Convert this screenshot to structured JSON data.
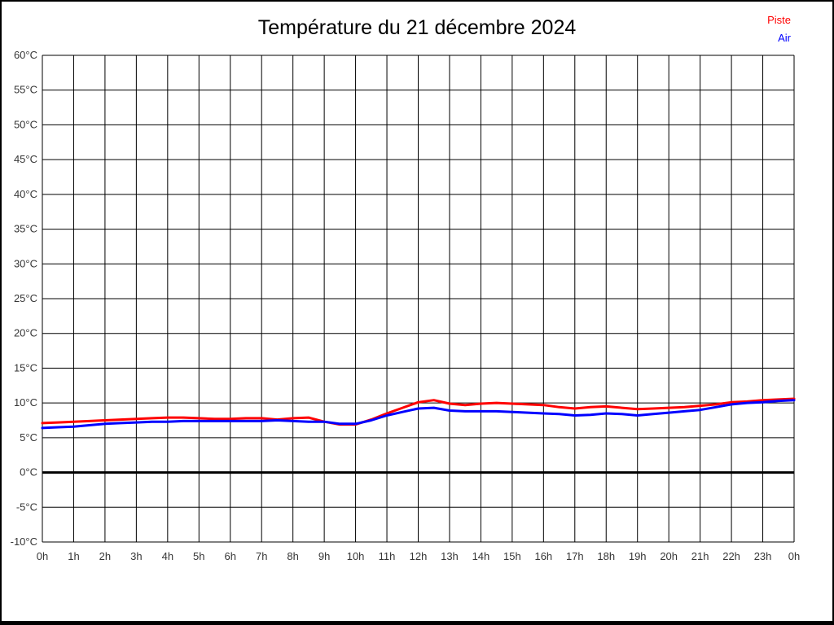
{
  "title": "Température du 21 décembre 2024",
  "legend": {
    "piste_label": "Piste",
    "air_label": "Air"
  },
  "colors": {
    "piste": "#ff0000",
    "air": "#0000ff",
    "grid": "#000000",
    "zero_line": "#000000",
    "tick_text": "#363636"
  },
  "chart_data": {
    "type": "line",
    "title": "Température du 21 décembre 2024",
    "xlabel": "",
    "ylabel": "",
    "x_unit": "h",
    "y_unit": "°C",
    "xlim_hours": [
      0,
      24
    ],
    "ylim": [
      -10,
      60
    ],
    "y_step": 5,
    "grid": "on",
    "zero_line_value": 0,
    "legend_position": "top-right-outside",
    "x_tick_labels": [
      "0h",
      "1h",
      "2h",
      "3h",
      "4h",
      "5h",
      "6h",
      "7h",
      "8h",
      "9h",
      "10h",
      "11h",
      "12h",
      "13h",
      "14h",
      "15h",
      "16h",
      "17h",
      "18h",
      "19h",
      "20h",
      "21h",
      "22h",
      "23h",
      "0h"
    ],
    "y_tick_labels": [
      "60°C",
      "55°C",
      "50°C",
      "45°C",
      "40°C",
      "35°C",
      "30°C",
      "25°C",
      "20°C",
      "15°C",
      "10°C",
      "5°C",
      "0°C",
      "-5°C",
      "-10°C"
    ],
    "x_step_hours": 0.5,
    "series": [
      {
        "name": "Piste",
        "color": "#ff0000",
        "values": [
          7.1,
          7.2,
          7.3,
          7.4,
          7.5,
          7.6,
          7.7,
          7.8,
          7.9,
          7.9,
          7.8,
          7.7,
          7.7,
          7.8,
          7.8,
          7.6,
          7.8,
          7.9,
          7.3,
          6.9,
          6.9,
          7.6,
          8.5,
          9.3,
          10.1,
          10.4,
          9.9,
          9.7,
          9.9,
          10.0,
          9.9,
          9.8,
          9.7,
          9.4,
          9.2,
          9.4,
          9.5,
          9.3,
          9.1,
          9.2,
          9.3,
          9.4,
          9.6,
          9.8,
          10.1,
          10.2,
          10.4,
          10.5,
          10.6
        ]
      },
      {
        "name": "Air",
        "color": "#0000ff",
        "values": [
          6.4,
          6.5,
          6.6,
          6.8,
          7.0,
          7.1,
          7.2,
          7.3,
          7.3,
          7.4,
          7.4,
          7.4,
          7.4,
          7.4,
          7.4,
          7.5,
          7.4,
          7.3,
          7.3,
          7.0,
          7.0,
          7.5,
          8.2,
          8.7,
          9.2,
          9.3,
          8.9,
          8.8,
          8.8,
          8.8,
          8.7,
          8.6,
          8.5,
          8.4,
          8.2,
          8.3,
          8.5,
          8.4,
          8.2,
          8.4,
          8.6,
          8.8,
          9.0,
          9.4,
          9.8,
          10.0,
          10.1,
          10.3,
          10.4
        ]
      }
    ]
  }
}
